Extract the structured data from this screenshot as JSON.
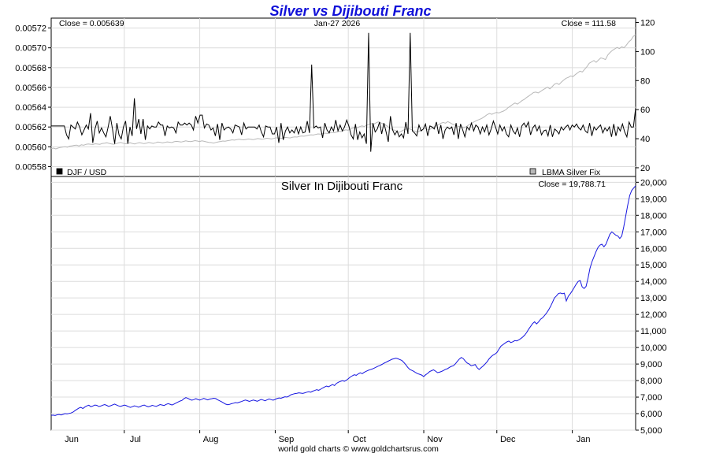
{
  "chart_data": [
    {
      "type": "line",
      "title": "Silver vs Dijibouti Franc",
      "date_label": "Jan-27  2026",
      "left_close_label": "Close = 0.005639",
      "right_close_label": "Close = 111.58",
      "left_axis": {
        "ylim": [
          0.00557,
          0.00573
        ],
        "ticks": [
          "0.00558",
          "0.00560",
          "0.00562",
          "0.00564",
          "0.00566",
          "0.00568",
          "0.00570",
          "0.00572"
        ]
      },
      "right_axis": {
        "ylim": [
          14,
          123
        ],
        "ticks": [
          "20",
          "40",
          "60",
          "80",
          "100",
          "120"
        ]
      },
      "x_ticks": [
        "Jun",
        "Jul",
        "Aug",
        "Sep",
        "Oct",
        "Nov",
        "Dec",
        "Jan"
      ],
      "legend": {
        "position": "bottom",
        "items": [
          "DJF / USD",
          "LBMA Silver Fix"
        ],
        "colors": [
          "#000000",
          "#b8b8b8"
        ]
      },
      "series": [
        {
          "name": "DJF / USD",
          "axis": "left",
          "color": "#000000",
          "values": [
            0.005621,
            0.005621,
            0.005621,
            0.005621,
            0.005621,
            0.005621,
            0.005621,
            0.005612,
            0.005608,
            0.005622,
            0.00562,
            0.005618,
            0.005625,
            0.00562,
            0.005612,
            0.005617,
            0.005622,
            0.005618,
            0.005634,
            0.005604,
            0.005618,
            0.005626,
            0.005614,
            0.005619,
            0.005614,
            0.00561,
            0.00562,
            0.005631,
            0.005618,
            0.005603,
            0.005624,
            0.005612,
            0.005608,
            0.00562,
            0.005626,
            0.005603,
            0.00562,
            0.005611,
            0.005649,
            0.005618,
            0.005628,
            0.005613,
            0.005628,
            0.005607,
            0.005621,
            0.005618,
            0.005621,
            0.00562,
            0.00562,
            0.005625,
            0.005622,
            0.005622,
            0.005611,
            0.005621,
            0.005619,
            0.00562,
            0.005619,
            0.005614,
            0.005625,
            0.005622,
            0.005622,
            0.005624,
            0.005622,
            0.005624,
            0.005622,
            0.005617,
            0.005631,
            0.005624,
            0.005632,
            0.005632,
            0.005619,
            0.005623,
            0.005622,
            0.005617,
            0.005619,
            0.005611,
            0.005623,
            0.005607,
            0.005624,
            0.005617,
            0.005619,
            0.00562,
            0.005618,
            0.005614,
            0.005622,
            0.005621,
            0.00562,
            0.005612,
            0.005624,
            0.005618,
            0.00562,
            0.00562,
            0.00562,
            0.00562,
            0.005618,
            0.005622,
            0.005615,
            0.00561,
            0.005621,
            0.00562,
            0.00562,
            0.005613,
            0.005613,
            0.00562,
            0.005604,
            0.005624,
            0.005607,
            0.005616,
            0.00562,
            0.005614,
            0.005617,
            0.005614,
            0.00562,
            0.005613,
            0.00562,
            0.005614,
            0.005615,
            0.005626,
            0.005614,
            0.005683,
            0.005619,
            0.005621,
            0.005619,
            0.00562,
            0.005609,
            0.005624,
            0.005617,
            0.005614,
            0.00562,
            0.005616,
            0.005627,
            0.005616,
            0.005622,
            0.005616,
            0.00562,
            0.005627,
            0.005621,
            0.005612,
            0.005608,
            0.005623,
            0.005607,
            0.005615,
            0.005609,
            0.005613,
            0.005603,
            0.005715,
            0.005595,
            0.005624,
            0.005615,
            0.005618,
            0.005625,
            0.005613,
            0.005624,
            0.005615,
            0.005605,
            0.005631,
            0.005617,
            0.005612,
            0.005616,
            0.00561,
            0.005613,
            0.005609,
            0.005625,
            0.005613,
            0.005715,
            0.005616,
            0.005614,
            0.005611,
            0.005622,
            0.005616,
            0.005618,
            0.005623,
            0.005611,
            0.005621,
            0.00562,
            0.005618,
            0.005625,
            0.005613,
            0.005622,
            0.005608,
            0.005617,
            0.00562,
            0.005618,
            0.00562,
            0.005612,
            0.005624,
            0.005608,
            0.005623,
            0.005617,
            0.00561,
            0.00562,
            0.005617,
            0.005624,
            0.005616,
            0.005622,
            0.00562,
            0.005613,
            0.00562,
            0.005615,
            0.005622,
            0.005612,
            0.005618,
            0.005626,
            0.00562,
            0.005613,
            0.005622,
            0.005616,
            0.00562,
            0.005613,
            0.00561,
            0.005622,
            0.005616,
            0.005613,
            0.005619,
            0.00561,
            0.005621,
            0.005624,
            0.00562,
            0.005625,
            0.005612,
            0.005619,
            0.005622,
            0.005616,
            0.005621,
            0.005612,
            0.005616,
            0.005617,
            0.005611,
            0.005622,
            0.00561,
            0.005618,
            0.005616,
            0.005613,
            0.00562,
            0.005617,
            0.00562,
            0.005622,
            0.005617,
            0.005622,
            0.00562,
            0.005623,
            0.005619,
            0.005617,
            0.005622,
            0.005616,
            0.005614,
            0.005624,
            0.005611,
            0.00562,
            0.005617,
            0.00562,
            0.005622,
            0.005614,
            0.005619,
            0.005616,
            0.00562,
            0.00561,
            0.005623,
            0.005611,
            0.00562,
            0.005616,
            0.005623,
            0.005615,
            0.00561,
            0.005625,
            0.00562,
            0.00562,
            0.005639
          ]
        },
        {
          "name": "LBMA Silver Fix",
          "axis": "right",
          "color": "#b8b8b8",
          "values": [
            33.2,
            33.5,
            33.0,
            33.6,
            34.0,
            34.3,
            34.5,
            34.2,
            34.9,
            35.1,
            35.4,
            35.6,
            35.0,
            35.8,
            35.5,
            36.1,
            36.4,
            36.2,
            36.0,
            36.5,
            36.3,
            36.1,
            36.7,
            36.9,
            37.2,
            36.8,
            36.4,
            36.2,
            36.6,
            37.1,
            37.4,
            36.9,
            36.5,
            36.8,
            37.2,
            36.7,
            36.4,
            36.9,
            37.3,
            37.0,
            36.6,
            36.9,
            37.4,
            37.1,
            36.8,
            37.2,
            37.7,
            37.5,
            37.1,
            37.4,
            37.8,
            37.6,
            37.3,
            37.9,
            38.2,
            38.0,
            37.7,
            38.1,
            38.5,
            38.2,
            38.0,
            38.3,
            38.7,
            38.4,
            38.1,
            38.5,
            38.2,
            37.8,
            37.5,
            37.3,
            37.0,
            37.4,
            37.8,
            38.1,
            38.4,
            38.3,
            38.6,
            38.9,
            39.2,
            39.0,
            39.3,
            39.7,
            39.4,
            39.2,
            39.5,
            39.8,
            39.6,
            39.3,
            39.7,
            40.1,
            39.9,
            39.6,
            40.0,
            40.3,
            40.1,
            39.8,
            40.2,
            40.6,
            40.4,
            40.1,
            40.5,
            40.9,
            40.7,
            40.5,
            41.0,
            41.3,
            41.1,
            41.6,
            41.9,
            41.7,
            42.0,
            42.4,
            42.7,
            42.5,
            42.9,
            43.3,
            43.1,
            43.5,
            43.8,
            43.6,
            43.9,
            44.4,
            44.1,
            44.6,
            45.2,
            44.9,
            45.5,
            46.1,
            45.8,
            46.6,
            47.3,
            47.9,
            47.4,
            48.3,
            48.8,
            48.4,
            49.3,
            49.9,
            50.4,
            49.9,
            50.8,
            51.6,
            51.0,
            50.3,
            49.5,
            48.6,
            47.3,
            46.4,
            45.9,
            45.0,
            44.4,
            45.2,
            46.0,
            46.6,
            46.9,
            46.5,
            45.8,
            45.0,
            44.6,
            45.5,
            46.2,
            47.0,
            46.6,
            46.2,
            47.1,
            48.0,
            48.9,
            49.6,
            50.6,
            51.2,
            50.7,
            51.8,
            51.0,
            50.0,
            49.4,
            48.8,
            48.3,
            48.0,
            47.5,
            48.3,
            49.4,
            50.4,
            51.3,
            52.1,
            52.9,
            53.5,
            54.3,
            55.4,
            56.6,
            57.4,
            56.8,
            57.5,
            58.1,
            57.7,
            58.4,
            59.0,
            59.9,
            61.4,
            62.4,
            63.6,
            64.6,
            63.8,
            64.9,
            66.2,
            67.1,
            68.4,
            69.5,
            70.6,
            71.8,
            72.1,
            71.5,
            72.5,
            73.6,
            74.6,
            75.5,
            74.3,
            75.8,
            77.5,
            78.1,
            77.3,
            79.0,
            80.4,
            81.6,
            82.2,
            83.2,
            82.7,
            84.1,
            85.3,
            86.5,
            85.9,
            87.7,
            89.6,
            91.9,
            92.9,
            93.8,
            92.6,
            94.2,
            95.6,
            95.2,
            94.5,
            97.6,
            99.4,
            100.8,
            101.8,
            102.8,
            102.0,
            103.2,
            102.6,
            104.4,
            106.6,
            107.9,
            110.5,
            111.58
          ]
        }
      ]
    },
    {
      "type": "line",
      "title": "Silver In Dijibouti Franc",
      "close_label": "Close = 19,788.71",
      "ylim": [
        5000,
        20350
      ],
      "y_ticks": [
        "5,000",
        "6,000",
        "7,000",
        "8,000",
        "9,000",
        "10,000",
        "11,000",
        "12,000",
        "13,000",
        "14,000",
        "15,000",
        "16,000",
        "17,000",
        "18,000",
        "19,000",
        "20,000"
      ],
      "x_ticks": [
        "Jun",
        "Jul",
        "Aug",
        "Sep",
        "Oct",
        "Nov",
        "Dec",
        "Jan"
      ],
      "series": [
        {
          "color": "#1515e0",
          "values": [
            5900,
            5910,
            5885,
            5930,
            5950,
            5920,
            5960,
            6000,
            5980,
            6010,
            6040,
            6090,
            6180,
            6260,
            6340,
            6380,
            6310,
            6400,
            6470,
            6510,
            6420,
            6460,
            6520,
            6500,
            6430,
            6460,
            6510,
            6550,
            6500,
            6440,
            6480,
            6530,
            6580,
            6520,
            6470,
            6440,
            6480,
            6520,
            6480,
            6420,
            6380,
            6420,
            6470,
            6440,
            6390,
            6430,
            6490,
            6520,
            6460,
            6410,
            6450,
            6500,
            6470,
            6440,
            6490,
            6550,
            6520,
            6490,
            6560,
            6600,
            6570,
            6520,
            6580,
            6640,
            6700,
            6760,
            6800,
            6900,
            6970,
            6920,
            6860,
            6810,
            6850,
            6900,
            6860,
            6820,
            6870,
            6920,
            6880,
            6830,
            6880,
            6900,
            6930,
            6910,
            6840,
            6780,
            6720,
            6650,
            6580,
            6540,
            6560,
            6600,
            6630,
            6670,
            6650,
            6690,
            6730,
            6780,
            6820,
            6790,
            6740,
            6780,
            6820,
            6790,
            6750,
            6800,
            6860,
            6820,
            6780,
            6840,
            6890,
            6850,
            6810,
            6860,
            6910,
            6950,
            6930,
            6980,
            7020,
            7000,
            7060,
            7140,
            7180,
            7210,
            7230,
            7260,
            7240,
            7220,
            7260,
            7300,
            7330,
            7300,
            7360,
            7400,
            7450,
            7410,
            7480,
            7550,
            7610,
            7670,
            7620,
            7700,
            7760,
            7700,
            7830,
            7900,
            7950,
            8000,
            7960,
            8020,
            8120,
            8220,
            8290,
            8350,
            8320,
            8410,
            8470,
            8420,
            8500,
            8560,
            8620,
            8660,
            8700,
            8750,
            8810,
            8870,
            8920,
            8980,
            9050,
            9110,
            9170,
            9230,
            9290,
            9320,
            9350,
            9320,
            9270,
            9220,
            9100,
            8960,
            8800,
            8670,
            8620,
            8560,
            8480,
            8420,
            8380,
            8330,
            8240,
            8350,
            8430,
            8540,
            8600,
            8650,
            8570,
            8480,
            8510,
            8550,
            8610,
            8680,
            8720,
            8800,
            8860,
            8900,
            9010,
            9160,
            9300,
            9400,
            9330,
            9180,
            9060,
            9000,
            8900,
            8930,
            8970,
            8780,
            8670,
            8780,
            8880,
            9000,
            9140,
            9310,
            9440,
            9540,
            9600,
            9700,
            9890,
            10080,
            10170,
            10260,
            10340,
            10390,
            10300,
            10350,
            10420,
            10400,
            10460,
            10540,
            10630,
            10750,
            10910,
            11110,
            11280,
            11450,
            11560,
            11430,
            11550,
            11710,
            11800,
            11930,
            12080,
            12260,
            12470,
            12730,
            13000,
            13120,
            13260,
            13300,
            13250,
            13290,
            12820,
            13100,
            13250,
            13430,
            13630,
            13830,
            14000,
            14050,
            13670,
            13570,
            13700,
            14200,
            14800,
            15200,
            15500,
            15800,
            16050,
            16200,
            16250,
            16100,
            16250,
            16550,
            16850,
            17000,
            16900,
            16800,
            16750,
            16600,
            16750,
            17300,
            17950,
            18600,
            19200,
            19500,
            19650,
            19788.71
          ]
        }
      ]
    }
  ],
  "footer": "world gold charts © www.goldchartsrus.com"
}
